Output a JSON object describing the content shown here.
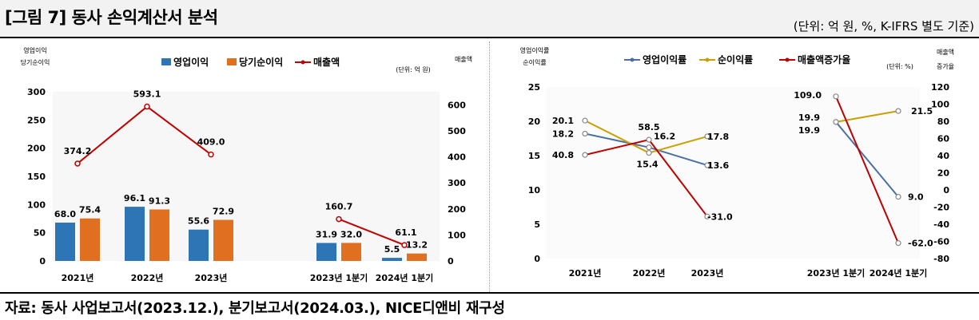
{
  "header": {
    "title": "[그림 7] 동사 손익계산서 분석",
    "unit": "(단위: 억 원, %, K-IFRS 별도 기준)"
  },
  "source": "자료: 동사 사업보고서(2023.12.), 분기보고서(2024.03.), NICE디앤비 재구성",
  "chart_data": [
    {
      "type": "bar",
      "left_axis_label": [
        "영업이익",
        "당기순이익"
      ],
      "right_axis_label": "매출액",
      "unit_note": "(단위: 억 원)",
      "categories": [
        "2021년",
        "2022년",
        "2023년",
        "2023년 1분기",
        "2024년 1분기"
      ],
      "series": [
        {
          "name": "영업이익",
          "kind": "bar",
          "axis": "left",
          "color": "#2e75b6",
          "values": [
            68.0,
            96.1,
            55.6,
            31.9,
            5.5
          ]
        },
        {
          "name": "당기순이익",
          "kind": "bar",
          "axis": "left",
          "color": "#e07020",
          "values": [
            75.4,
            91.3,
            72.9,
            32.0,
            13.2
          ]
        },
        {
          "name": "매출액",
          "kind": "line",
          "axis": "right",
          "color": "#c00000",
          "values": [
            374.2,
            593.1,
            409.0,
            160.7,
            61.1
          ]
        }
      ],
      "ylim_left": [
        0,
        300
      ],
      "yticks_left": [
        0,
        50,
        100,
        150,
        200,
        250,
        300
      ],
      "ylim_right": [
        0,
        650
      ],
      "yticks_right": [
        0,
        100,
        200,
        300,
        400,
        500,
        600
      ],
      "grid": false,
      "legend": "top-center"
    },
    {
      "type": "line",
      "left_axis_label": [
        "영업이익률",
        "순이익률"
      ],
      "right_axis_label": [
        "매출액",
        "증가율"
      ],
      "unit_note": "(단위: %)",
      "categories": [
        "2021년",
        "2022년",
        "2023년",
        "2023년 1분기",
        "2024년 1분기"
      ],
      "series": [
        {
          "name": "영업이익률",
          "axis": "left",
          "color": "#4a6fa5",
          "values": [
            18.2,
            16.2,
            13.6,
            19.9,
            9.0
          ]
        },
        {
          "name": "순이익률",
          "axis": "left",
          "color": "#c8a000",
          "values": [
            20.1,
            15.4,
            17.8,
            19.9,
            21.5
          ]
        },
        {
          "name": "매출액증가율",
          "axis": "right",
          "color": "#c00000",
          "values": [
            40.8,
            58.5,
            -31.0,
            109.0,
            -62.0
          ]
        }
      ],
      "ylim_left": [
        0,
        25
      ],
      "yticks_left": [
        0,
        5,
        10,
        15,
        20,
        25
      ],
      "ylim_right": [
        -80,
        120
      ],
      "yticks_right": [
        -80,
        -60,
        -40,
        -20,
        0,
        20,
        40,
        60,
        80,
        100,
        120
      ],
      "grid": false,
      "legend": "top-center"
    }
  ]
}
